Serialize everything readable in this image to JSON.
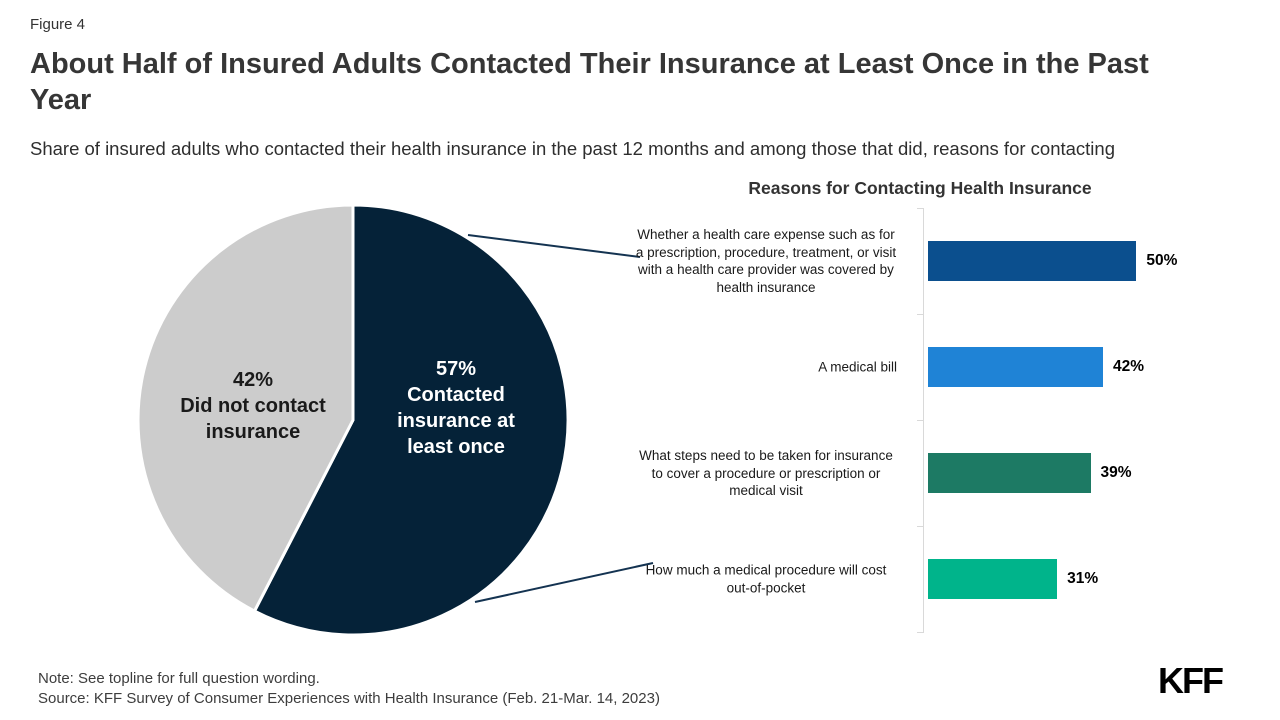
{
  "figure_label": "Figure 4",
  "title": "About Half of Insured Adults Contacted Their Insurance at Least Once in the Past Year",
  "subtitle": "Share of insured adults who contacted their health insurance in the past 12 months and among those that did, reasons for contacting",
  "note": "Note: See topline for full question wording.",
  "source": "Source: KFF Survey of Consumer Experiences with Health Insurance (Feb. 21-Mar. 14, 2023)",
  "logo": "KFF",
  "colors": {
    "navy": "#052238",
    "light_gray_slice": "#cccccc",
    "leader_line": "#143351",
    "axis_gray": "#d9d9d9"
  },
  "chart_data": [
    {
      "type": "pie",
      "title": "",
      "slices": [
        {
          "label": "Contacted insurance at least once",
          "value": 57,
          "color": "#052238",
          "text_color": "#ffffff",
          "center_label": "57%\nContacted\ninsurance at\nleast once"
        },
        {
          "label": "Did not contact insurance",
          "value": 42,
          "color": "#cccccc",
          "text_color": "#1a1a1a",
          "center_label": "42%\nDid not contact\ninsurance"
        }
      ],
      "start_angle_deg": 0,
      "direction": "clockwise",
      "legend_position": "none"
    },
    {
      "type": "bar",
      "orientation": "horizontal",
      "title": "Reasons for Contacting Health Insurance",
      "categories": [
        "Whether a health care expense such as for a prescription, procedure, treatment, or visit with a health care provider was covered by health insurance",
        "A medical bill",
        "What steps need to be taken for insurance to cover a procedure or prescription or medical visit",
        "How much a medical procedure will cost out-of-pocket"
      ],
      "values": [
        50,
        42,
        39,
        31
      ],
      "value_labels": [
        "50%",
        "42%",
        "39%",
        "31%"
      ],
      "colors": [
        "#0b4f8e",
        "#1f83d6",
        "#1d7a64",
        "#00b48b"
      ],
      "xlabel": "",
      "ylabel": "",
      "xlim": [
        0,
        60
      ],
      "grid": false,
      "legend_position": "none"
    }
  ]
}
